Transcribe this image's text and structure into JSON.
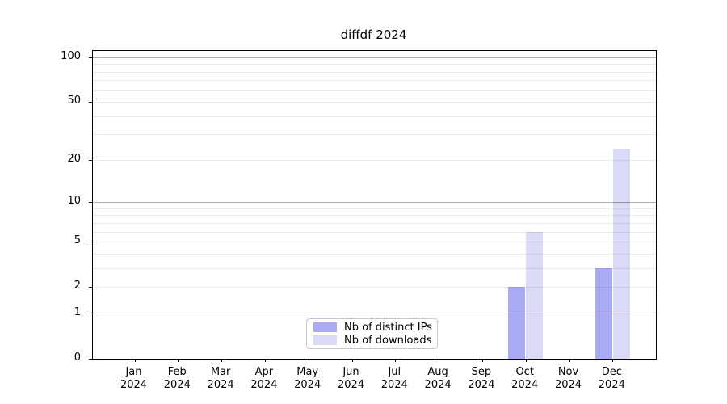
{
  "figure": {
    "background": "#ffffff"
  },
  "chart_data": {
    "type": "bar",
    "title": "diffdf 2024",
    "x_categories": [
      "Jan",
      "Feb",
      "Mar",
      "Apr",
      "May",
      "Jun",
      "Jul",
      "Aug",
      "Sep",
      "Oct",
      "Nov",
      "Dec"
    ],
    "x_year": "2024",
    "series": [
      {
        "name": "Nb of distinct IPs",
        "color": "#a9a9f4",
        "values": [
          0,
          0,
          0,
          0,
          0,
          0,
          0,
          0,
          0,
          2,
          0,
          3
        ]
      },
      {
        "name": "Nb of downloads",
        "color": "#dadaf6",
        "values": [
          0,
          0,
          0,
          0,
          0,
          0,
          0,
          0,
          0,
          6,
          0,
          24
        ]
      }
    ],
    "y_scale": "log1p",
    "ylim": [
      0,
      101
    ],
    "y_ticks": [
      0,
      1,
      2,
      5,
      10,
      20,
      50,
      100
    ],
    "y_minor_gridlines": [
      2,
      3,
      4,
      5,
      6,
      7,
      8,
      9,
      20,
      30,
      40,
      50,
      60,
      70,
      80,
      90
    ],
    "y_major_gridlines": [
      1,
      10,
      100
    ],
    "grid": true,
    "legend": {
      "position": "lower center",
      "entries": [
        "Nb of distinct IPs",
        "Nb of downloads"
      ]
    }
  }
}
